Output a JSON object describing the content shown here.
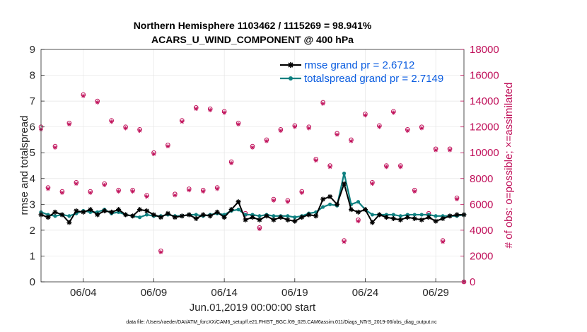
{
  "chart_data": {
    "type": "line",
    "title": "Northern Hemisphere 1103462 / 1115269 = 98.941%",
    "subtitle": "ACARS_U_WIND_COMPONENT @ 400 hPa",
    "xlabel": "Jun.01,2019 00:00:00 start",
    "ylabel": "rmse and totalspread",
    "ylabel_right": "# of obs: o=possible; ×=assimilated",
    "footer": "data file: /Users/raeder/DAI/ATM_forcXX/CAM6_setup/f.e21.FHIST_BGC.f09_025.CAM6assim.011/Diags_NTrS_2019-06/obs_diag_output.nc",
    "xlim": [
      1,
      31
    ],
    "ylim": [
      0,
      9
    ],
    "ylim_right": [
      0,
      18000
    ],
    "x_ticks": [
      4,
      9,
      14,
      19,
      24,
      29
    ],
    "x_tick_labels": [
      "06/04",
      "06/09",
      "06/14",
      "06/19",
      "06/24",
      "06/29"
    ],
    "y_ticks": [
      0,
      1,
      2,
      3,
      4,
      5,
      6,
      7,
      8,
      9
    ],
    "y_tick_labels": [
      "0",
      "1",
      "2",
      "3",
      "4",
      "5",
      "6",
      "7",
      "8",
      "9"
    ],
    "y_ticks_right": [
      0,
      2000,
      4000,
      6000,
      8000,
      10000,
      12000,
      14000,
      16000,
      18000
    ],
    "y_tick_labels_right": [
      "0",
      "2000",
      "4000",
      "6000",
      "8000",
      "10000",
      "12000",
      "14000",
      "16000",
      "18000"
    ],
    "legend_position": "top-right",
    "colors": {
      "rmse": "#000000",
      "spread": "#0e8080",
      "obs": "#c0105a"
    },
    "series": [
      {
        "name": "rmse",
        "legend": "rmse grand pr = 2.6712",
        "x": [
          1.0,
          1.5,
          2.0,
          2.5,
          3.0,
          3.5,
          4.0,
          4.5,
          5.0,
          5.5,
          6.0,
          6.5,
          7.0,
          7.5,
          8.0,
          8.5,
          9.0,
          9.5,
          10.0,
          10.5,
          11.0,
          11.5,
          12.0,
          12.5,
          13.0,
          13.5,
          14.0,
          14.5,
          15.0,
          15.5,
          16.0,
          16.5,
          17.0,
          17.5,
          18.0,
          18.5,
          19.0,
          19.5,
          20.0,
          20.5,
          21.0,
          21.5,
          22.0,
          22.5,
          23.0,
          23.5,
          24.0,
          24.5,
          25.0,
          25.5,
          26.0,
          26.5,
          27.0,
          27.5,
          28.0,
          28.5,
          29.0,
          29.5,
          30.0,
          30.5,
          31.0
        ],
        "values": [
          2.6,
          2.5,
          2.7,
          2.6,
          2.3,
          2.75,
          2.7,
          2.8,
          2.6,
          2.75,
          2.7,
          2.8,
          2.6,
          2.55,
          2.8,
          2.75,
          2.6,
          2.5,
          2.65,
          2.5,
          2.55,
          2.6,
          2.45,
          2.6,
          2.55,
          2.7,
          2.5,
          2.8,
          3.1,
          2.4,
          2.5,
          2.4,
          2.55,
          2.4,
          2.5,
          2.4,
          2.35,
          2.5,
          2.6,
          2.55,
          3.2,
          3.3,
          3.0,
          3.8,
          2.8,
          2.7,
          2.8,
          2.3,
          2.6,
          2.5,
          2.45,
          2.4,
          2.5,
          2.45,
          2.4,
          2.5,
          2.35,
          2.45,
          2.55,
          2.6,
          2.6
        ]
      },
      {
        "name": "totalspread",
        "legend": "totalspread grand pr = 2.7149",
        "x": [
          1.0,
          1.5,
          2.0,
          2.5,
          3.0,
          3.5,
          4.0,
          4.5,
          5.0,
          5.5,
          6.0,
          6.5,
          7.0,
          7.5,
          8.0,
          8.5,
          9.0,
          9.5,
          10.0,
          10.5,
          11.0,
          11.5,
          12.0,
          12.5,
          13.0,
          13.5,
          14.0,
          14.5,
          15.0,
          15.5,
          16.0,
          16.5,
          17.0,
          17.5,
          18.0,
          18.5,
          19.0,
          19.5,
          20.0,
          20.5,
          21.0,
          21.5,
          22.0,
          22.5,
          23.0,
          23.5,
          24.0,
          24.5,
          25.0,
          25.5,
          26.0,
          26.5,
          27.0,
          27.5,
          28.0,
          28.5,
          29.0,
          29.5,
          30.0,
          30.5,
          31.0
        ],
        "values": [
          2.7,
          2.6,
          2.55,
          2.6,
          2.55,
          2.65,
          2.75,
          2.7,
          2.7,
          2.8,
          2.65,
          2.7,
          2.6,
          2.55,
          2.5,
          2.6,
          2.55,
          2.55,
          2.6,
          2.55,
          2.55,
          2.6,
          2.6,
          2.55,
          2.6,
          2.65,
          2.6,
          2.75,
          2.8,
          2.6,
          2.6,
          2.55,
          2.6,
          2.55,
          2.55,
          2.55,
          2.5,
          2.55,
          2.65,
          2.7,
          2.9,
          3.0,
          2.95,
          4.2,
          3.0,
          3.1,
          2.8,
          2.6,
          2.6,
          2.6,
          2.6,
          2.55,
          2.6,
          2.6,
          2.6,
          2.6,
          2.55,
          2.55,
          2.55,
          2.55,
          2.6
        ]
      }
    ],
    "obs_possible": {
      "name": "possible",
      "x": [
        1.0,
        1.5,
        2.0,
        2.5,
        3.0,
        3.5,
        4.0,
        4.5,
        5.0,
        5.5,
        6.0,
        6.5,
        7.0,
        7.5,
        8.0,
        8.5,
        9.0,
        9.5,
        10.0,
        10.5,
        11.0,
        11.5,
        12.0,
        12.5,
        13.0,
        13.5,
        14.0,
        14.5,
        15.0,
        15.5,
        16.0,
        16.5,
        17.0,
        17.5,
        18.0,
        18.5,
        19.0,
        19.5,
        20.0,
        20.5,
        21.0,
        21.5,
        22.0,
        22.5,
        23.0,
        23.5,
        24.0,
        24.5,
        25.0,
        25.5,
        26.0,
        26.5,
        27.0,
        27.5,
        28.0,
        28.5,
        29.0,
        29.5,
        30.0,
        30.5,
        31.0
      ],
      "values": [
        12000,
        7300,
        10500,
        7000,
        12300,
        7700,
        14500,
        7000,
        14000,
        7600,
        12500,
        7100,
        12000,
        7100,
        11800,
        6700,
        10000,
        2400,
        10600,
        6800,
        12500,
        7200,
        13500,
        7100,
        13400,
        7300,
        13200,
        9300,
        12300,
        5300,
        10500,
        4200,
        11000,
        6400,
        11800,
        6300,
        12100,
        7000,
        12000,
        9500,
        13900,
        9000,
        11500,
        3200,
        11000,
        4800,
        13000,
        7700,
        12100,
        9000,
        13200,
        9000,
        11800,
        7100,
        12000,
        5300,
        10300,
        3200,
        10300,
        6500,
        0
      ]
    },
    "obs_assimilated": {
      "name": "assimilated",
      "x": [
        1.0,
        1.5,
        2.0,
        2.5,
        3.0,
        3.5,
        4.0,
        4.5,
        5.0,
        5.5,
        6.0,
        6.5,
        7.0,
        7.5,
        8.0,
        8.5,
        9.0,
        9.5,
        10.0,
        10.5,
        11.0,
        11.5,
        12.0,
        12.5,
        13.0,
        13.5,
        14.0,
        14.5,
        15.0,
        15.5,
        16.0,
        16.5,
        17.0,
        17.5,
        18.0,
        18.5,
        19.0,
        19.5,
        20.0,
        20.5,
        21.0,
        21.5,
        22.0,
        22.5,
        23.0,
        23.5,
        24.0,
        24.5,
        25.0,
        25.5,
        26.0,
        26.5,
        27.0,
        27.5,
        28.0,
        28.5,
        29.0,
        29.5,
        30.0,
        30.5,
        31.0
      ],
      "values": [
        11800,
        7200,
        10400,
        6900,
        12200,
        7600,
        14400,
        6900,
        13900,
        7500,
        12400,
        7000,
        11900,
        7000,
        11700,
        6600,
        9900,
        2300,
        10500,
        6700,
        12400,
        7100,
        13400,
        7000,
        13300,
        7200,
        13100,
        9200,
        12200,
        5200,
        10400,
        4100,
        10900,
        6300,
        11700,
        6200,
        12000,
        6900,
        11900,
        9400,
        13800,
        8900,
        11400,
        3100,
        10900,
        4700,
        12900,
        7600,
        12000,
        8900,
        13100,
        8900,
        11700,
        7000,
        11900,
        5200,
        10200,
        3100,
        10200,
        6400,
        0
      ]
    }
  }
}
